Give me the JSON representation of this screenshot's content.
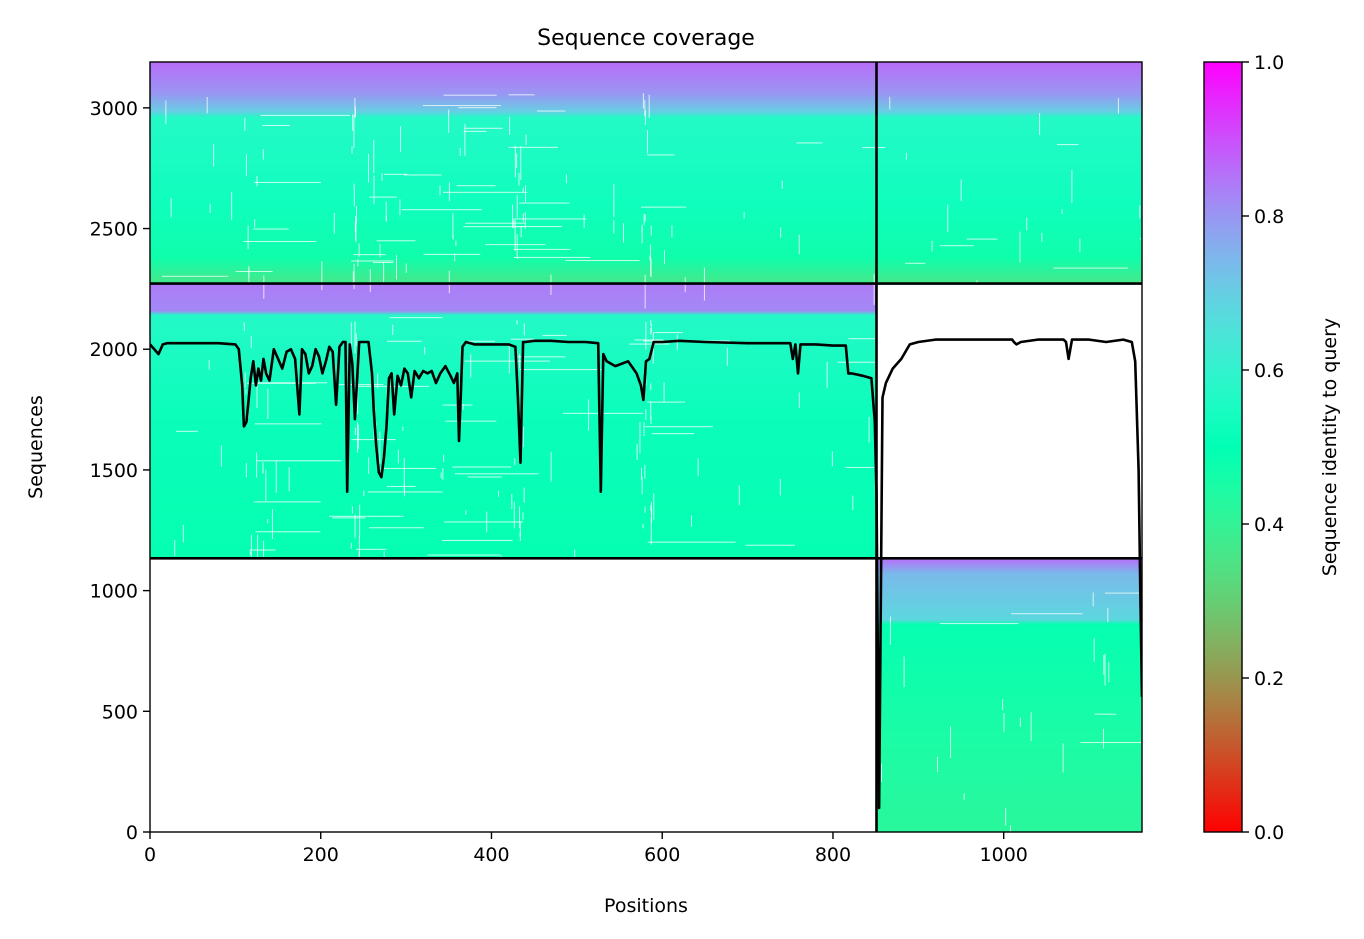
{
  "chart_data": {
    "type": "heatmap",
    "title": "Sequence coverage",
    "xlabel": "Positions",
    "ylabel": "Sequences",
    "xlim": [
      0,
      1162
    ],
    "ylim": [
      0,
      3190
    ],
    "x_ticks": [
      0,
      200,
      400,
      600,
      800,
      1000
    ],
    "y_ticks": [
      0,
      500,
      1000,
      1500,
      2000,
      2500,
      3000
    ],
    "colorbar": {
      "label": "Sequence identity to query",
      "colormap": "rainbow_r",
      "range": [
        0,
        1
      ],
      "ticks": [
        "0.0",
        "0.2",
        "0.4",
        "0.6",
        "0.8",
        "1.0"
      ]
    },
    "chain_boundary_x": 851,
    "msa_blocks": [
      {
        "x": [
          0,
          1162
        ],
        "y": [
          2272,
          3190
        ],
        "gradient": [
          {
            "y": 3190,
            "identity": 0.86
          },
          {
            "y": 3060,
            "identity": 0.8
          },
          {
            "y": 2985,
            "identity": 0.7
          },
          {
            "y": 2960,
            "identity": 0.57
          },
          {
            "y": 2600,
            "identity": 0.53
          },
          {
            "y": 2380,
            "identity": 0.47
          },
          {
            "y": 2272,
            "identity": 0.36
          }
        ]
      },
      {
        "x": [
          0,
          851
        ],
        "y": [
          1134,
          2272
        ],
        "gradient": [
          {
            "y": 2272,
            "identity": 0.84
          },
          {
            "y": 2160,
            "identity": 0.82
          },
          {
            "y": 2140,
            "identity": 0.57
          },
          {
            "y": 1700,
            "identity": 0.52
          },
          {
            "y": 1134,
            "identity": 0.49
          }
        ]
      },
      {
        "x": [
          851,
          1162
        ],
        "y": [
          0,
          1134
        ],
        "gradient": [
          {
            "y": 1134,
            "identity": 0.86
          },
          {
            "y": 1070,
            "identity": 0.74
          },
          {
            "y": 880,
            "identity": 0.68
          },
          {
            "y": 860,
            "identity": 0.49
          },
          {
            "y": 400,
            "identity": 0.45
          },
          {
            "y": 0,
            "identity": 0.42
          }
        ]
      }
    ],
    "series": [
      {
        "x": [
          0,
          5,
          10,
          15,
          20,
          40,
          60,
          80,
          100,
          104,
          108,
          110,
          113,
          118,
          121,
          124,
          127,
          130,
          133,
          136,
          140,
          145,
          150,
          155,
          160,
          165,
          170,
          175,
          178,
          182,
          186,
          190,
          194,
          198,
          202,
          206,
          210,
          214,
          218,
          222,
          226,
          229,
          231,
          234,
          237,
          240,
          245,
          250,
          256,
          260,
          262,
          265,
          268,
          271,
          274,
          277,
          280,
          283,
          286,
          290,
          294,
          298,
          302,
          306,
          310,
          315,
          320,
          325,
          330,
          335,
          340,
          346,
          352,
          356,
          360,
          362,
          364,
          366,
          370,
          380,
          390,
          400,
          410,
          420,
          428,
          431,
          434,
          437,
          440,
          450,
          470,
          490,
          510,
          525,
          528,
          531,
          535,
          545,
          560,
          570,
          575,
          578,
          581,
          585,
          590,
          600,
          620,
          650,
          700,
          750,
          753,
          756,
          759,
          762,
          780,
          800,
          815,
          818,
          822,
          835,
          845,
          849,
          851,
          854,
          858,
          862,
          870,
          880,
          890,
          900,
          920,
          940,
          960,
          980,
          1000,
          1010,
          1012,
          1015,
          1020,
          1040,
          1060,
          1070,
          1073,
          1076,
          1080,
          1100,
          1120,
          1140,
          1150,
          1154,
          1158,
          1160,
          1162
        ],
        "y": [
          2020,
          2000,
          1980,
          2020,
          2025,
          2025,
          2025,
          2025,
          2020,
          2000,
          1850,
          1680,
          1700,
          1880,
          1950,
          1850,
          1920,
          1870,
          1960,
          1900,
          1870,
          2000,
          1960,
          1920,
          1990,
          2000,
          1960,
          1730,
          2000,
          1980,
          1900,
          1930,
          2000,
          1970,
          1900,
          1950,
          2010,
          1990,
          1770,
          2010,
          2030,
          2030,
          1410,
          2020,
          1940,
          1710,
          2030,
          2030,
          2030,
          1900,
          1750,
          1600,
          1490,
          1470,
          1550,
          1680,
          1880,
          1900,
          1730,
          1890,
          1850,
          1920,
          1900,
          1800,
          1910,
          1880,
          1910,
          1900,
          1910,
          1860,
          1900,
          1930,
          1890,
          1860,
          1900,
          1620,
          1800,
          2010,
          2030,
          2020,
          2020,
          2020,
          2020,
          2020,
          2010,
          1800,
          1530,
          2030,
          2030,
          2035,
          2035,
          2030,
          2030,
          2025,
          1410,
          1980,
          1950,
          1930,
          1950,
          1900,
          1850,
          1790,
          1950,
          1960,
          2030,
          2030,
          2035,
          2030,
          2025,
          2025,
          1960,
          2020,
          1900,
          2020,
          2020,
          2015,
          2015,
          1900,
          1900,
          1890,
          1880,
          1700,
          1400,
          100,
          1800,
          1860,
          1920,
          1960,
          2020,
          2030,
          2040,
          2040,
          2040,
          2040,
          2040,
          2040,
          2030,
          2020,
          2030,
          2040,
          2040,
          2040,
          2030,
          1960,
          2040,
          2040,
          2030,
          2040,
          2030,
          1950,
          1500,
          1000,
          560
        ]
      }
    ]
  }
}
